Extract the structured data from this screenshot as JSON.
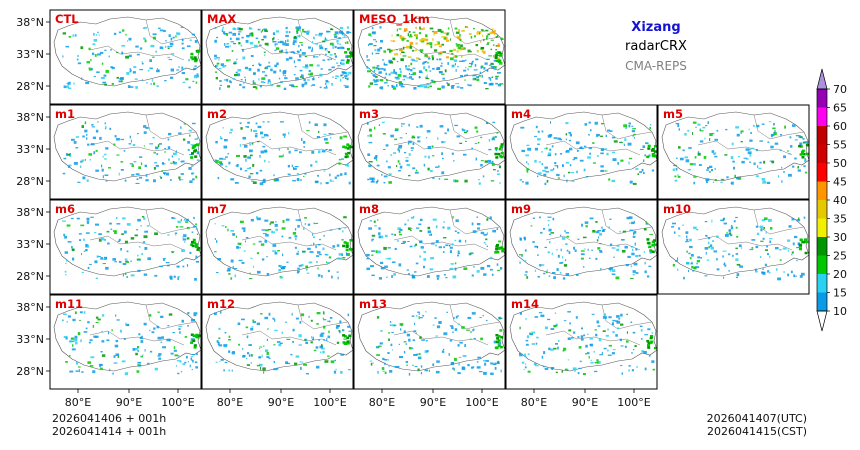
{
  "title": {
    "region": "Xizang",
    "product": "radarCRX",
    "system": "CMA-REPS",
    "region_color": "#1414d2",
    "system_color": "#808080"
  },
  "panels": [
    "CTL",
    "MAX",
    "MESO_1km",
    "m1",
    "m2",
    "m3",
    "m4",
    "m5",
    "m6",
    "m7",
    "m8",
    "m9",
    "m10",
    "m11",
    "m12",
    "m13",
    "m14"
  ],
  "axes": {
    "y_ticks": [
      "38°N",
      "33°N",
      "28°N"
    ],
    "x_ticks": [
      "80°E",
      "90°E",
      "100°E"
    ]
  },
  "colorbar": {
    "ticks": [
      "70",
      "65",
      "60",
      "55",
      "50",
      "45",
      "40",
      "35",
      "30",
      "25",
      "20",
      "15",
      "10"
    ],
    "colors": [
      "#0a9be6",
      "#28d2f0",
      "#00c800",
      "#009600",
      "#f0f000",
      "#e6c800",
      "#ff9600",
      "#ff0000",
      "#d00000",
      "#c00000",
      "#ff00f0",
      "#9600b4"
    ],
    "over_color": "#ad90e0",
    "under_color": "#ffffff"
  },
  "footer": {
    "init_utc": "2026041406  +  001h",
    "init_cst": "2026041414  +  001h",
    "valid_utc": "2026041407(UTC)",
    "valid_cst": "2026041415(CST)"
  }
}
